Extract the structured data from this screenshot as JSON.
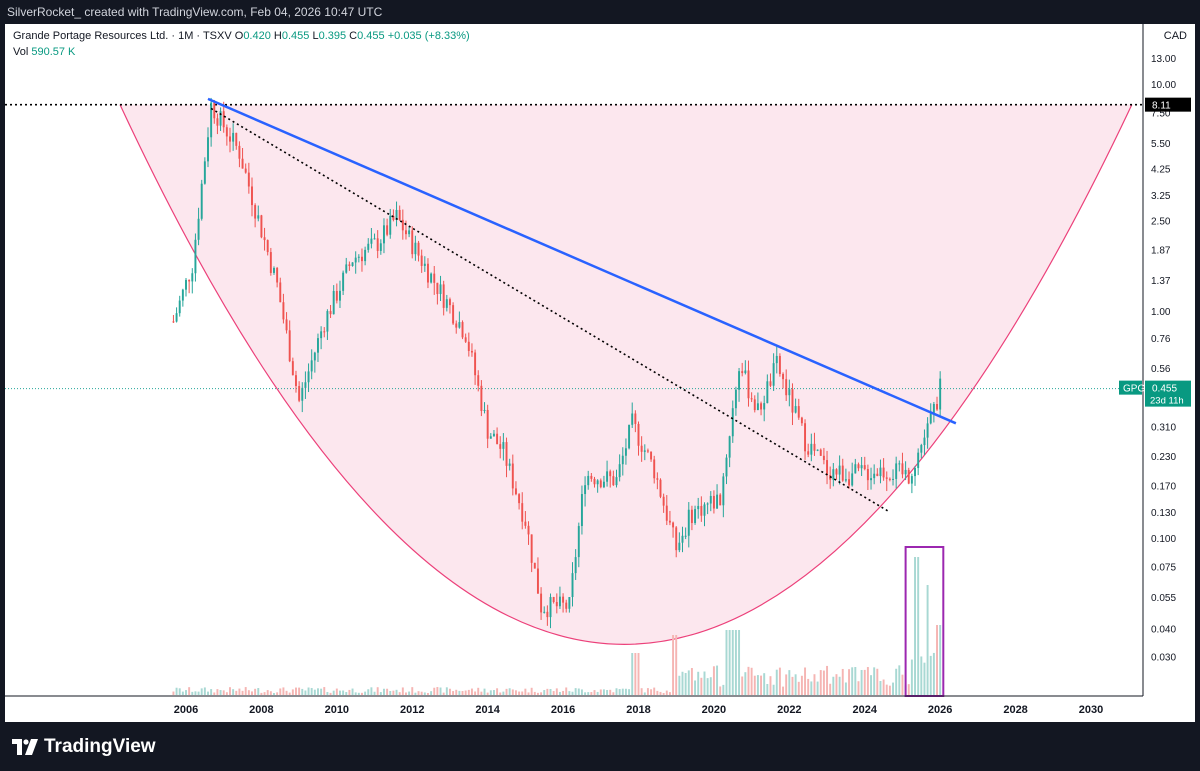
{
  "header": {
    "attribution": "SilverRocket_ created with TradingView.com, Feb 04, 2026 10:47 UTC"
  },
  "legend": {
    "symbol_line": "Grande Portage Resources Ltd. · 1M · TSXV",
    "o_label": "O",
    "o_value": "0.420",
    "h_label": "H",
    "h_value": "0.455",
    "l_label": "L",
    "l_value": "0.395",
    "c_label": "C",
    "c_value": "0.455",
    "change": "+0.035 (+8.33%)",
    "vol_label": "Vol",
    "vol_value": "590.57 K"
  },
  "currency": "CAD",
  "price_tag": {
    "ticker": "GPG",
    "price": "0.455",
    "countdown": "23d 11h"
  },
  "level_label": "8.11",
  "footer": {
    "brand": "TradingView"
  },
  "colors": {
    "up": "#26a69a",
    "down": "#ef5350",
    "trendline": "#2962ff",
    "cup_fill": "#fce4ec",
    "cup_stroke": "#ec407a",
    "box": "#9c27b0",
    "background": "#131722"
  },
  "chart_data": {
    "type": "candlestick",
    "timeframe": "1M",
    "y_scale": "log",
    "y_ticks": [
      "13.00",
      "10.00",
      "7.50",
      "5.50",
      "4.25",
      "3.25",
      "2.50",
      "1.87",
      "1.37",
      "1.00",
      "0.76",
      "0.56",
      "0.310",
      "0.230",
      "0.170",
      "0.130",
      "0.100",
      "0.075",
      "0.055",
      "0.040",
      "0.030"
    ],
    "x_ticks": [
      "2006",
      "2008",
      "2010",
      "2012",
      "2014",
      "2016",
      "2018",
      "2020",
      "2022",
      "2024",
      "2026",
      "2028",
      "2030"
    ],
    "anchors": [
      {
        "date": "2005-09",
        "price": 0.9
      },
      {
        "date": "2006-03",
        "price": 1.6
      },
      {
        "date": "2006-09",
        "price": 8.1
      },
      {
        "date": "2007-06",
        "price": 5.0
      },
      {
        "date": "2008-06",
        "price": 1.3
      },
      {
        "date": "2009-01",
        "price": 0.4
      },
      {
        "date": "2009-09",
        "price": 0.9
      },
      {
        "date": "2010-06",
        "price": 1.7
      },
      {
        "date": "2011-02",
        "price": 2.0
      },
      {
        "date": "2011-08",
        "price": 2.6
      },
      {
        "date": "2012-06",
        "price": 1.5
      },
      {
        "date": "2013-06",
        "price": 0.8
      },
      {
        "date": "2014-01",
        "price": 0.3
      },
      {
        "date": "2014-06",
        "price": 0.24
      },
      {
        "date": "2015-01",
        "price": 0.12
      },
      {
        "date": "2015-06",
        "price": 0.05
      },
      {
        "date": "2016-03",
        "price": 0.05
      },
      {
        "date": "2016-08",
        "price": 0.19
      },
      {
        "date": "2017-06",
        "price": 0.18
      },
      {
        "date": "2017-11",
        "price": 0.32
      },
      {
        "date": "2018-06",
        "price": 0.2
      },
      {
        "date": "2019-01",
        "price": 0.09
      },
      {
        "date": "2019-06",
        "price": 0.13
      },
      {
        "date": "2020-03",
        "price": 0.15
      },
      {
        "date": "2020-09",
        "price": 0.58
      },
      {
        "date": "2021-03",
        "price": 0.36
      },
      {
        "date": "2021-09",
        "price": 0.58
      },
      {
        "date": "2022-06",
        "price": 0.27
      },
      {
        "date": "2023-01",
        "price": 0.2
      },
      {
        "date": "2023-09",
        "price": 0.19
      },
      {
        "date": "2024-06",
        "price": 0.2
      },
      {
        "date": "2025-03",
        "price": 0.19
      },
      {
        "date": "2025-09",
        "price": 0.3
      },
      {
        "date": "2026-01",
        "price": 0.455
      }
    ],
    "trendline": [
      {
        "date": "2006-08",
        "price": 8.6
      },
      {
        "date": "2026-06",
        "price": 0.32
      }
    ],
    "support_line": [
      {
        "date": "2006-09",
        "price": 7.8
      },
      {
        "date": "2024-09",
        "price": 0.13
      }
    ],
    "horizontal_levels": [
      {
        "price": 8.11,
        "style": "dotted"
      },
      {
        "price": 0.455,
        "style": "dotted",
        "color": "#26a69a"
      }
    ],
    "cup": {
      "left": {
        "date": "2004-04",
        "price": 8.11
      },
      "bottom": {
        "date": "2017-08",
        "price": 0.034
      },
      "right": {
        "date": "2031-02",
        "price": 8.11
      }
    },
    "volume_highlight": {
      "from": "2025-02",
      "to": "2026-02"
    }
  }
}
